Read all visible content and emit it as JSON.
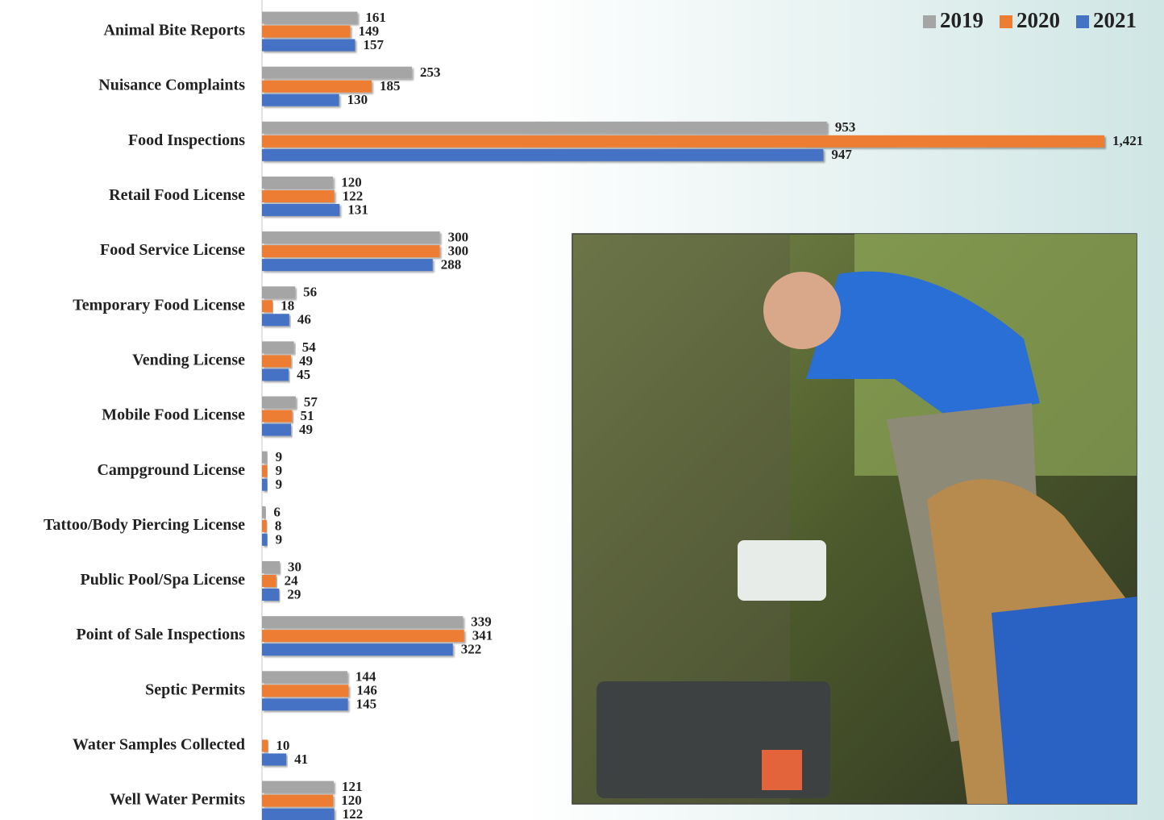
{
  "chart_data": {
    "type": "bar",
    "categories": [
      "Animal Bite Reports",
      "Nuisance Complaints",
      "Food Inspections",
      "Retail Food License",
      "Food Service License",
      "Temporary Food License",
      "Vending License",
      "Mobile Food License",
      "Campground License",
      "Tattoo/Body Piercing License",
      "Public Pool/Spa License",
      "Point of Sale Inspections",
      "Septic Permits",
      "Water Samples Collected",
      "Well Water Permits"
    ],
    "series": [
      {
        "name": "2019",
        "color": "#a5a5a5",
        "values": [
          161,
          253,
          953,
          120,
          300,
          56,
          54,
          57,
          9,
          6,
          30,
          339,
          144,
          null,
          121
        ]
      },
      {
        "name": "2020",
        "color": "#ed7d31",
        "values": [
          149,
          185,
          1421,
          122,
          300,
          18,
          49,
          51,
          9,
          8,
          24,
          341,
          146,
          10,
          120
        ],
        "value_labels": [
          "149",
          "185",
          "1,421",
          "122",
          "300",
          "18",
          "49",
          "51",
          "9",
          "8",
          "24",
          "341",
          "146",
          "10",
          "120"
        ]
      },
      {
        "name": "2021",
        "color": "#4472c4",
        "values": [
          157,
          130,
          947,
          131,
          288,
          46,
          45,
          49,
          9,
          9,
          29,
          322,
          145,
          41,
          122
        ]
      }
    ],
    "legend": "top-right"
  }
}
